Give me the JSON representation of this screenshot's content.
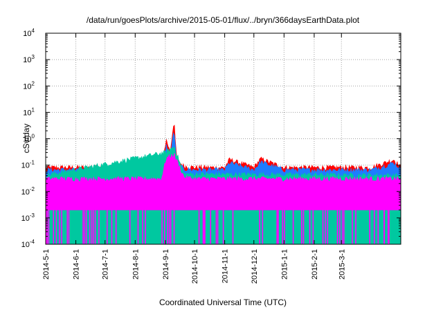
{
  "chart_data": {
    "type": "area",
    "title": "/data/run/goesPlots/archive/2015-05-01/flux/../bryn/366daysEarthData.plot",
    "xlabel": "Coordinated Universal Time (UTC)",
    "ylabel": "cSv/day",
    "y_scale": "log",
    "ylim": [
      0.0001,
      10000
    ],
    "y_tick_labels": [
      {
        "base": "10",
        "exp": "-4",
        "value": 0.0001
      },
      {
        "base": "10",
        "exp": "-3",
        "value": 0.001
      },
      {
        "base": "10",
        "exp": "-2",
        "value": 0.01
      },
      {
        "base": "10",
        "exp": "-1",
        "value": 0.1
      },
      {
        "base": "10",
        "exp": "0",
        "value": 1
      },
      {
        "base": "10",
        "exp": "1",
        "value": 10
      },
      {
        "base": "10",
        "exp": "2",
        "value": 100
      },
      {
        "base": "10",
        "exp": "3",
        "value": 1000
      },
      {
        "base": "10",
        "exp": "4",
        "value": 10000
      }
    ],
    "xlim": [
      "2014-05-01",
      "2015-05-01"
    ],
    "x_tick_labels": [
      "2014-5-1",
      "2014-6-1",
      "2014-7-1",
      "2014-8-1",
      "2014-9-1",
      "2014-10-1",
      "2014-11-1",
      "2014-12-1",
      "2015-1-1",
      "2015-2-1",
      "2015-3-1"
    ],
    "x_ticks": [
      "2014-05-01",
      "2014-06-01",
      "2014-07-01",
      "2014-08-01",
      "2014-09-01",
      "2014-10-01",
      "2014-11-01",
      "2014-12-01",
      "2015-01-01",
      "2015-02-01",
      "2015-03-01"
    ],
    "grid": true,
    "legend": "none",
    "series": [
      {
        "color": "#ff0000",
        "x": [
          "2014-05-01",
          "2014-06-01",
          "2014-07-01",
          "2014-08-01",
          "2014-08-28",
          "2014-09-02",
          "2014-09-06",
          "2014-09-10",
          "2014-09-11",
          "2014-09-13",
          "2014-09-20",
          "2014-10-01",
          "2014-11-01",
          "2014-11-06",
          "2014-12-01",
          "2014-12-08",
          "2015-01-01",
          "2015-02-01",
          "2015-03-01",
          "2015-04-01",
          "2015-04-24",
          "2015-05-01"
        ],
        "values": [
          0.08,
          0.08,
          0.08,
          0.08,
          0.08,
          0.9,
          0.3,
          5.5,
          0.9,
          0.15,
          0.09,
          0.08,
          0.08,
          0.16,
          0.08,
          0.17,
          0.08,
          0.08,
          0.08,
          0.08,
          0.16,
          0.08
        ]
      },
      {
        "color": "#1e7cff",
        "x": [
          "2014-05-01",
          "2014-06-01",
          "2014-07-01",
          "2014-08-01",
          "2014-08-28",
          "2014-09-02",
          "2014-09-06",
          "2014-09-10",
          "2014-09-11",
          "2014-09-13",
          "2014-09-20",
          "2014-10-01",
          "2014-11-01",
          "2014-11-06",
          "2014-12-01",
          "2014-12-08",
          "2015-01-01",
          "2015-02-01",
          "2015-03-01",
          "2015-04-01",
          "2015-04-24",
          "2015-05-01"
        ],
        "values": [
          0.065,
          0.065,
          0.065,
          0.065,
          0.065,
          0.55,
          0.2,
          2.2,
          0.6,
          0.12,
          0.07,
          0.065,
          0.065,
          0.12,
          0.065,
          0.13,
          0.065,
          0.065,
          0.065,
          0.065,
          0.12,
          0.065
        ]
      },
      {
        "color": "#00c8a0",
        "x": [
          "2014-05-01",
          "2014-09-02",
          "2014-09-10",
          "2014-09-20",
          "2015-05-01"
        ],
        "values": [
          0.04,
          0.3,
          0.5,
          0.045,
          0.04
        ]
      },
      {
        "color": "#ff00ff",
        "x": [
          "2014-05-01",
          "2014-08-28",
          "2014-09-02",
          "2014-09-10",
          "2014-09-20",
          "2014-10-01",
          "2015-05-01"
        ],
        "values": [
          0.03,
          0.03,
          0.18,
          0.25,
          0.035,
          0.03,
          0.03
        ],
        "baseline": 0.002
      }
    ]
  }
}
